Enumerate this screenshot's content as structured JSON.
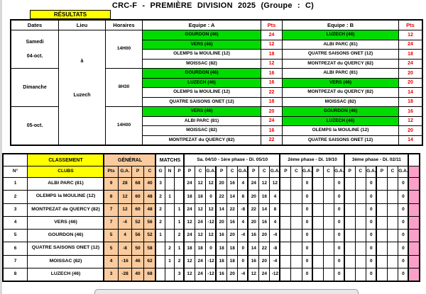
{
  "title": "CRC-F - PREMIÈRE DIVISION 2025 (Groupe : C)",
  "colors": {
    "highlight_green": "#00dc00",
    "header_yellow": "#ffff00",
    "general_peach": "#facb9e",
    "pink": "#fa9fc8",
    "points_red": "#ee0000",
    "p_blue": "#0000ee",
    "ga_green": "#008000"
  },
  "results": {
    "section_label": "RÉSULTATS",
    "columns": [
      "Dates",
      "Lieu",
      "Horaires",
      "Equipe : A",
      "Pts",
      "Equipe : B",
      "Pts"
    ],
    "lieu_lines": [
      "à",
      "Luzech"
    ],
    "groups": [
      {
        "date_lines": [
          "Samedi",
          "04-oct."
        ],
        "time": "14H00",
        "matches": [
          {
            "a": "GOURDON (46)",
            "a_green": true,
            "a_pts": "24",
            "b": "LUZECH (46)",
            "b_green": true,
            "b_pts": "12"
          },
          {
            "a": "VERS (46)",
            "a_green": true,
            "a_pts": "12",
            "b": "ALBI PARC (81)",
            "b_green": false,
            "b_pts": "24"
          },
          {
            "a": "OLEMPS la MOULINE (12)",
            "a_green": false,
            "a_pts": "18",
            "b": "QUATRE SAISONS ONET (12)",
            "b_green": false,
            "b_pts": "18"
          },
          {
            "a": "MOISSAC (82)",
            "a_green": false,
            "a_pts": "12",
            "b": "MONTPEZAT du QUERCY (82)",
            "b_green": false,
            "b_pts": "24"
          }
        ]
      },
      {
        "date_lines": [
          "Dimanche"
        ],
        "time": "8H30",
        "matches": [
          {
            "a": "GOURDON (46)",
            "a_green": true,
            "a_pts": "16",
            "b": "ALBI PARC (81)",
            "b_green": false,
            "b_pts": "20"
          },
          {
            "a": "LUZECH (46)",
            "a_green": true,
            "a_pts": "16",
            "b": "VERS (46)",
            "b_green": true,
            "b_pts": "20"
          },
          {
            "a": "OLEMPS la MOULINE (12)",
            "a_green": false,
            "a_pts": "22",
            "b": "MONTPEZAT du QUERCY (82)",
            "b_green": false,
            "b_pts": "14"
          },
          {
            "a": "QUATRE SAISONS ONET (12)",
            "a_green": false,
            "a_pts": "18",
            "b": "MOISSAC (82)",
            "b_green": false,
            "b_pts": "18"
          }
        ]
      },
      {
        "date_lines": [
          "05-oct."
        ],
        "time": "14H00",
        "matches": [
          {
            "a": "VERS (46)",
            "a_green": true,
            "a_pts": "20",
            "b": "GOURDON (46)",
            "b_green": true,
            "b_pts": "16"
          },
          {
            "a": "ALBI PARC (81)",
            "a_green": false,
            "a_pts": "24",
            "b": "LUZECH (46)",
            "b_green": true,
            "b_pts": "12"
          },
          {
            "a": "MOISSAC (82)",
            "a_green": false,
            "a_pts": "16",
            "b": "OLEMPS la MOULINE (12)",
            "b_green": false,
            "b_pts": "20"
          },
          {
            "a": "MONTPEZAT du QUERCY (82)",
            "a_green": false,
            "a_pts": "22",
            "b": "QUATRE SAISONS ONET (12)",
            "b_green": false,
            "b_pts": "14"
          }
        ]
      }
    ]
  },
  "classement": {
    "section_label": "CLASSEMENT",
    "general_label": "GÉNÉRAL",
    "matchs_label": "MATCHS",
    "phase_headers": [
      "Sa. 04/10 - 1ère phase - Di. 05/10",
      "2ème phase - Di. 19/10",
      "3ème phase - Di. 02/11"
    ],
    "col_headers": {
      "rank": "N°",
      "clubs": "CLUBS",
      "pts": "Pts",
      "ga": "G.A.",
      "p": "P",
      "c": "C",
      "g": "G",
      "n": "N",
      "l": "P"
    },
    "detail_headers": [
      "P",
      "C",
      "G.A."
    ],
    "rows": [
      {
        "rank": "1",
        "club": "ALBI PARC (81)",
        "green": false,
        "pts": "9",
        "ga": "28",
        "p": "68",
        "c": "40",
        "g": "3",
        "n": "",
        "l": "",
        "details": [
          [
            "24",
            "12",
            "12"
          ],
          [
            "20",
            "16",
            "4"
          ],
          [
            "24",
            "12",
            "12"
          ],
          [
            "",
            "",
            "0"
          ],
          [
            "",
            "",
            "0"
          ],
          [
            "",
            "",
            "0"
          ],
          [
            "",
            "",
            "0"
          ]
        ]
      },
      {
        "rank": "2",
        "club": "OLEMPS la MOULINE (12)",
        "green": false,
        "pts": "8",
        "ga": "12",
        "p": "60",
        "c": "48",
        "g": "2",
        "n": "1",
        "l": "",
        "details": [
          [
            "18",
            "18",
            "0"
          ],
          [
            "22",
            "14",
            "8"
          ],
          [
            "20",
            "16",
            "4"
          ],
          [
            "",
            "",
            "0"
          ],
          [
            "",
            "",
            "0"
          ],
          [
            "",
            "",
            "0"
          ],
          [
            "",
            "",
            "0"
          ]
        ]
      },
      {
        "rank": "3",
        "club": "MONTPEZAT de QUERCY (82)",
        "green": false,
        "pts": "7",
        "ga": "12",
        "p": "60",
        "c": "48",
        "g": "2",
        "n": "",
        "l": "1",
        "details": [
          [
            "24",
            "12",
            "12"
          ],
          [
            "14",
            "22",
            "-8"
          ],
          [
            "22",
            "14",
            "8"
          ],
          [
            "",
            "",
            "0"
          ],
          [
            "",
            "",
            "0"
          ],
          [
            "",
            "",
            "0"
          ],
          [
            "",
            "",
            "0"
          ]
        ]
      },
      {
        "rank": "4",
        "club": "VERS (46)",
        "green": true,
        "pts": "7",
        "ga": "-4",
        "p": "52",
        "c": "56",
        "g": "2",
        "n": "",
        "l": "1",
        "details": [
          [
            "12",
            "24",
            "-12"
          ],
          [
            "20",
            "16",
            "4"
          ],
          [
            "20",
            "16",
            "4"
          ],
          [
            "",
            "",
            "0"
          ],
          [
            "",
            "",
            "0"
          ],
          [
            "",
            "",
            "0"
          ],
          [
            "",
            "",
            "0"
          ]
        ]
      },
      {
        "rank": "5",
        "club": "GOURDON (46)",
        "green": true,
        "pts": "5",
        "ga": "4",
        "p": "56",
        "c": "52",
        "g": "1",
        "n": "",
        "l": "2",
        "details": [
          [
            "24",
            "12",
            "12"
          ],
          [
            "16",
            "20",
            "-4"
          ],
          [
            "16",
            "20",
            "-4"
          ],
          [
            "",
            "",
            "0"
          ],
          [
            "",
            "",
            "0"
          ],
          [
            "",
            "",
            "0"
          ],
          [
            "",
            "",
            "0"
          ]
        ]
      },
      {
        "rank": "6",
        "club": "QUATRE SAISONS ONET (12)",
        "green": false,
        "pts": "5",
        "ga": "-8",
        "p": "50",
        "c": "58",
        "g": "",
        "n": "2",
        "l": "1",
        "details": [
          [
            "18",
            "18",
            "0"
          ],
          [
            "18",
            "18",
            "0"
          ],
          [
            "14",
            "22",
            "-8"
          ],
          [
            "",
            "",
            "0"
          ],
          [
            "",
            "",
            "0"
          ],
          [
            "",
            "",
            "0"
          ],
          [
            "",
            "",
            "0"
          ]
        ]
      },
      {
        "rank": "7",
        "club": "MOISSAC (82)",
        "green": false,
        "pts": "4",
        "ga": "-16",
        "p": "46",
        "c": "62",
        "g": "",
        "n": "1",
        "l": "2",
        "details": [
          [
            "12",
            "24",
            "-12"
          ],
          [
            "18",
            "18",
            "0"
          ],
          [
            "16",
            "20",
            "-4"
          ],
          [
            "",
            "",
            "0"
          ],
          [
            "",
            "",
            "0"
          ],
          [
            "",
            "",
            "0"
          ],
          [
            "",
            "",
            "0"
          ]
        ]
      },
      {
        "rank": "8",
        "club": "LUZECH (46)",
        "green": true,
        "pts": "3",
        "ga": "-28",
        "p": "40",
        "c": "68",
        "g": "",
        "n": "",
        "l": "3",
        "details": [
          [
            "12",
            "24",
            "-12"
          ],
          [
            "16",
            "20",
            "-4"
          ],
          [
            "12",
            "24",
            "-12"
          ],
          [
            "",
            "",
            "0"
          ],
          [
            "",
            "",
            "0"
          ],
          [
            "",
            "",
            "0"
          ],
          [
            "",
            "",
            "0"
          ]
        ]
      }
    ]
  }
}
